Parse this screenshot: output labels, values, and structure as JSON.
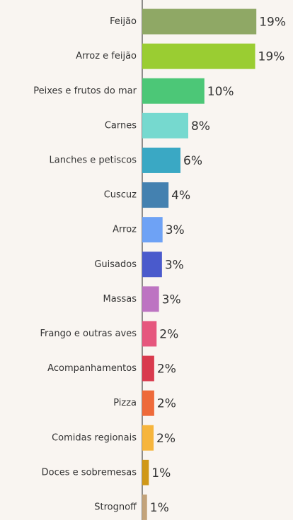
{
  "chart_data": {
    "type": "bar",
    "orientation": "horizontal",
    "categories": [
      "Feijão",
      "Arroz e feijão",
      "Peixes e frutos do mar",
      "Carnes",
      "Lanches e petiscos",
      "Cuscuz",
      "Arroz",
      "Guisados",
      "Massas",
      "Frango e outras aves",
      "Acompanhamentos",
      "Pizza",
      "Comidas regionais",
      "Doces e sobremesas",
      "Strognoff"
    ],
    "values": [
      19.1,
      18.9,
      10.4,
      7.7,
      6.4,
      4.4,
      3.4,
      3.3,
      2.8,
      2.4,
      2.0,
      2.0,
      1.9,
      1.1,
      0.8
    ],
    "value_labels": [
      "19%",
      "19%",
      "10%",
      "8%",
      "6%",
      "4%",
      "3%",
      "3%",
      "3%",
      "2%",
      "2%",
      "2%",
      "2%",
      "1%",
      "1%"
    ],
    "colors": [
      "#8fa865",
      "#9acd32",
      "#4cc777",
      "#76d9cf",
      "#3aa8c4",
      "#4481b0",
      "#6ea2f5",
      "#4a5acc",
      "#bd74c2",
      "#e6577e",
      "#d93a4e",
      "#ee6a3a",
      "#f6b53d",
      "#d09818",
      "#c3a37a"
    ],
    "xlim": [
      0,
      25
    ]
  }
}
